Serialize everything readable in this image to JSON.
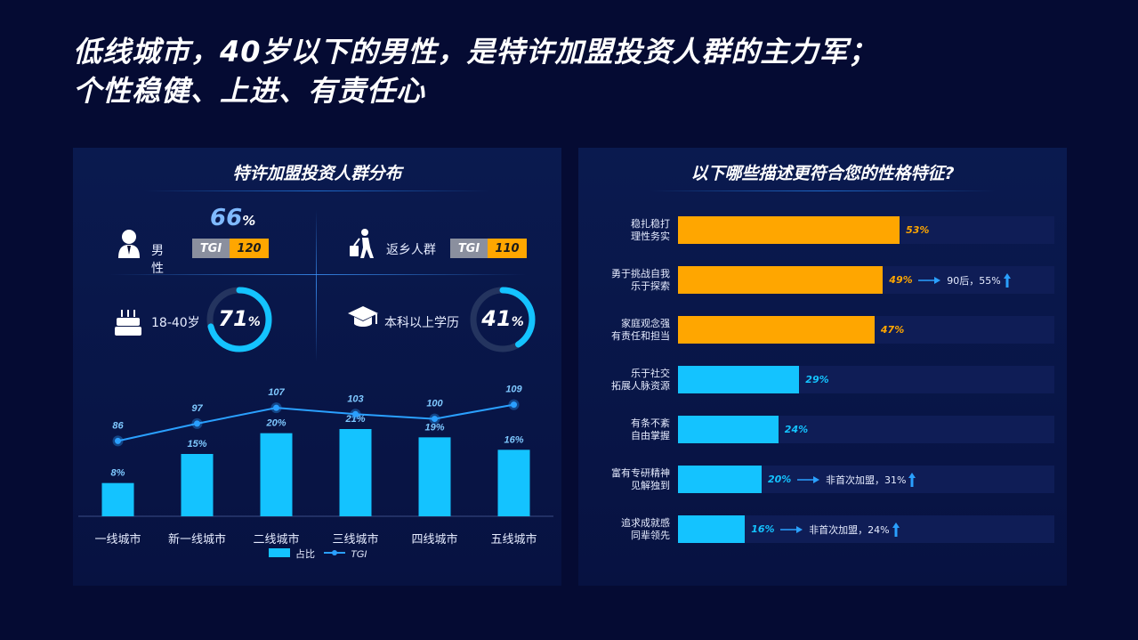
{
  "title": {
    "line1": "低线城市，40岁以下的男性，是特许加盟投资人群的主力军；",
    "line2": "个性稳健、上进、有责任心"
  },
  "left_panel": {
    "title": "特许加盟投资人群分布",
    "male": {
      "label": "男性",
      "pct": "66",
      "pct_unit": "%",
      "tgi_label": "TGI",
      "tgi_value": "120"
    },
    "returnee": {
      "label": "返乡人群",
      "tgi_label": "TGI",
      "tgi_value": "110"
    },
    "age": {
      "label": "18-40岁",
      "pct": "71",
      "pct_unit": "%",
      "fraction": 0.71
    },
    "edu": {
      "label": "本科以上学历",
      "pct": "41",
      "pct_unit": "%",
      "fraction": 0.41
    },
    "icons": [
      "user-icon",
      "traveler-icon",
      "cake-icon",
      "graduation-cap-icon"
    ]
  },
  "chart_data": [
    {
      "type": "bar",
      "categories": [
        "一线城市",
        "新一线城市",
        "二线城市",
        "三线城市",
        "四线城市",
        "五线城市"
      ],
      "series": [
        {
          "name": "占比",
          "type": "bar",
          "values": [
            8,
            15,
            20,
            21,
            19,
            16
          ],
          "labels": [
            "8%",
            "15%",
            "20%",
            "21%",
            "19%",
            "16%"
          ]
        },
        {
          "name": "TGI",
          "type": "line",
          "values": [
            86,
            97,
            107,
            103,
            100,
            109
          ],
          "labels": [
            "86",
            "97",
            "107",
            "103",
            "100",
            "109"
          ]
        }
      ],
      "legend": "bottom",
      "colors": {
        "bar": "#14c3ff",
        "line": "#2aa0ff"
      }
    },
    {
      "type": "bar",
      "orientation": "horizontal",
      "title": "以下哪些描述更符合您的性格特征?",
      "categories": [
        [
          "稳扎稳打",
          "理性务实"
        ],
        [
          "勇于挑战自我",
          "乐于探索"
        ],
        [
          "家庭观念强",
          "有责任和担当"
        ],
        [
          "乐于社交",
          "拓展人脉资源"
        ],
        [
          "有条不紊",
          "自由掌握"
        ],
        [
          "富有专研精神",
          "见解独到"
        ],
        [
          "追求成就感",
          "同辈领先"
        ]
      ],
      "values": [
        53,
        49,
        47,
        29,
        24,
        20,
        16
      ],
      "labels": [
        "53%",
        "49%",
        "47%",
        "29%",
        "24%",
        "20%",
        "16%"
      ],
      "highlight_colors": [
        "#ffa600",
        "#ffa600",
        "#ffa600",
        "#14c3ff",
        "#14c3ff",
        "#14c3ff",
        "#14c3ff"
      ],
      "xlim": [
        0,
        100
      ],
      "notes": [
        null,
        {
          "text": "90后，55%"
        },
        null,
        null,
        null,
        {
          "text": "非首次加盟，31%"
        },
        {
          "text": "非首次加盟，24%"
        }
      ]
    }
  ],
  "colors": {
    "bg": "#050b33",
    "orange": "#ffa600",
    "cyan": "#14c3ff",
    "blue": "#2aa0ff"
  }
}
